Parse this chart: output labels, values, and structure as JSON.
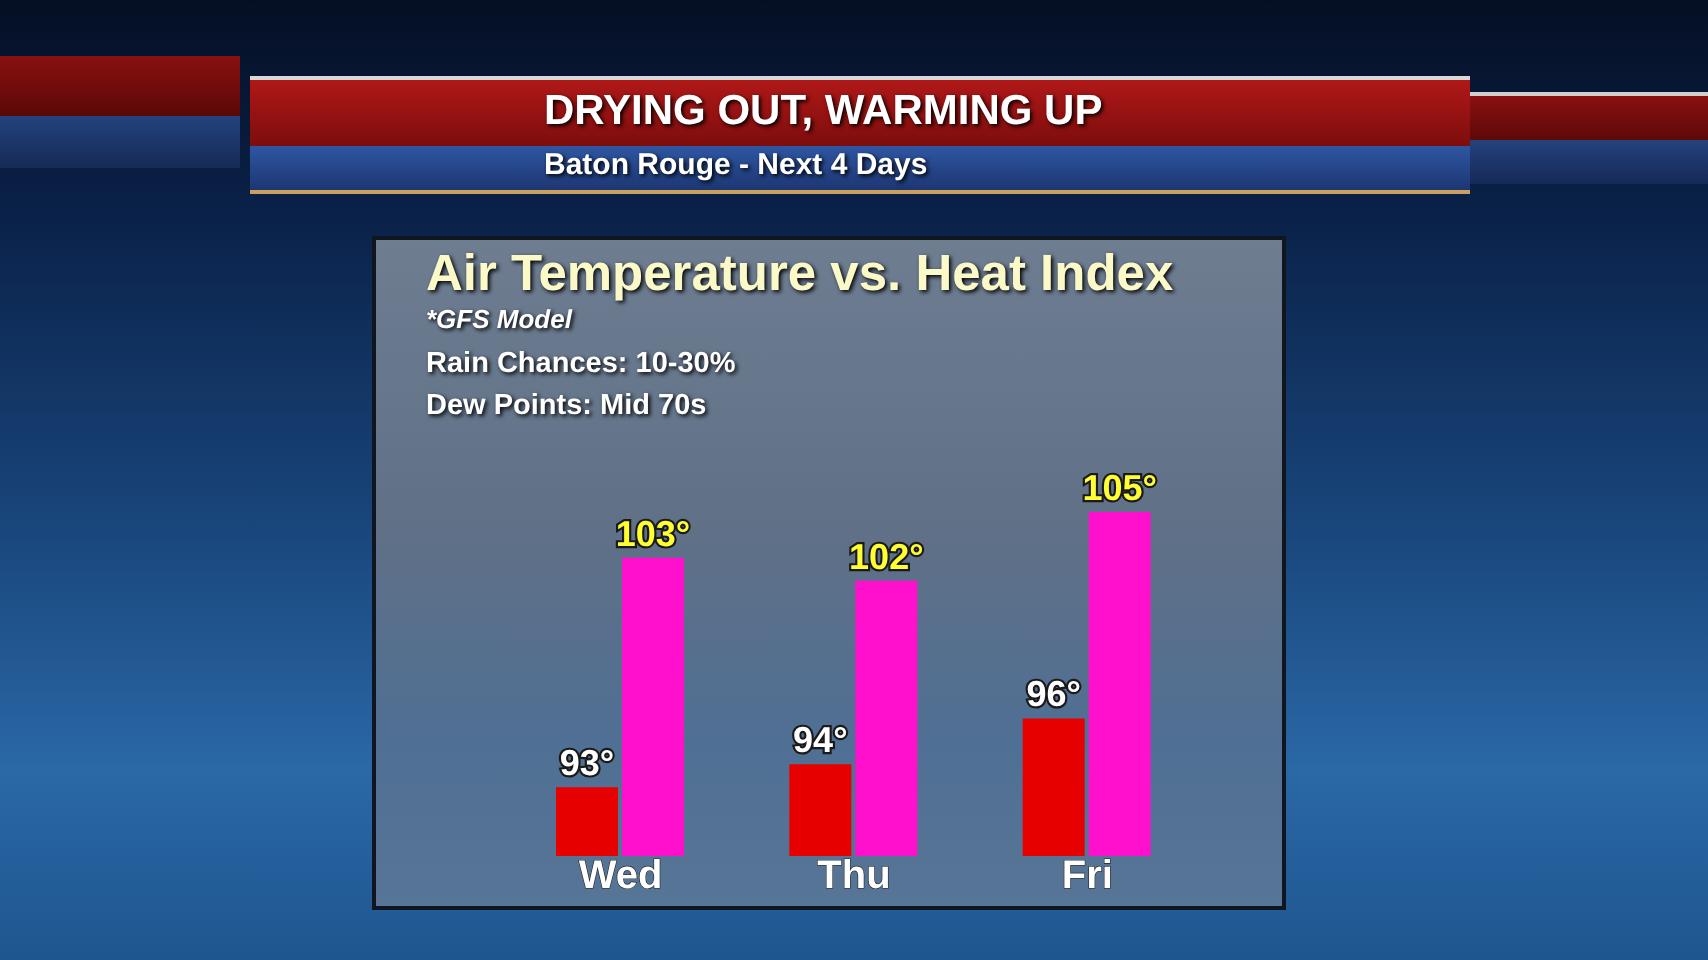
{
  "chart_data": {
    "type": "bar",
    "title": "Air Temperature vs. Heat Index",
    "subtitle": "*GFS Model",
    "annotations": [
      "DRYING OUT, WARMING UP",
      "Baton Rouge - Next 4 Days",
      "Rain Chances: 10-30%",
      "Dew Points: Mid 70s"
    ],
    "categories": [
      "Wed",
      "Thu",
      "Fri"
    ],
    "series": [
      {
        "color": "#e60000",
        "values": [
          93,
          94,
          96
        ],
        "value_labels": [
          "93°",
          "94°",
          "96°"
        ]
      },
      {
        "color": "#ff10cc",
        "values": [
          103,
          102,
          105
        ],
        "value_labels": [
          "103°",
          "102°",
          "105°"
        ]
      }
    ],
    "ylim": [
      90,
      105
    ],
    "tick_labels": "x"
  }
}
